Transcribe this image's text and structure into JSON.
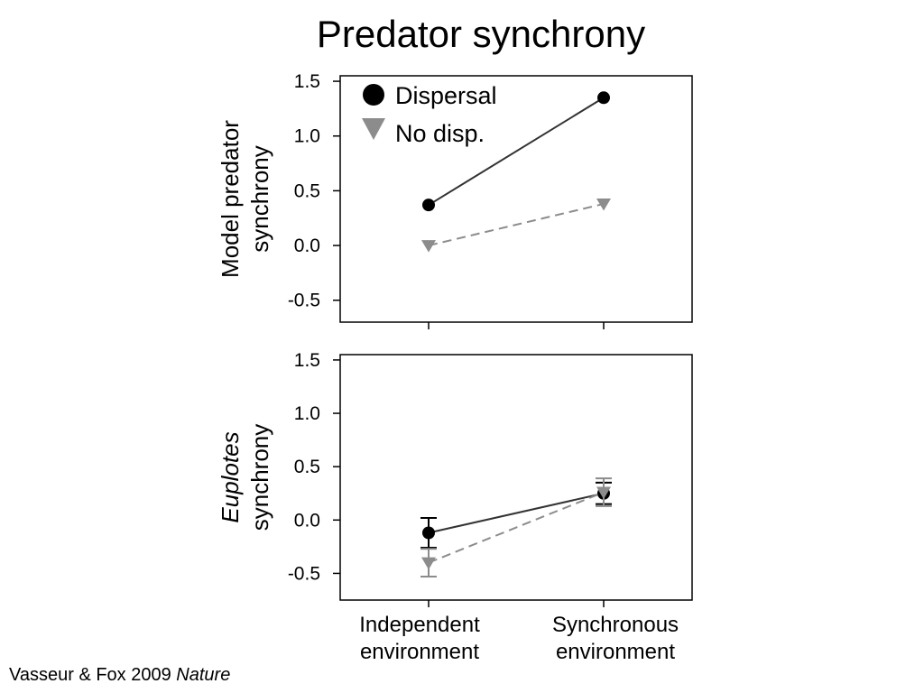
{
  "slide": {
    "title": "Predator synchrony",
    "citation_authors": "Vasseur & Fox 2009 ",
    "citation_journal": "Nature"
  },
  "colors": {
    "dispersal": "#000000",
    "no_dispersal": "#8c8c8c",
    "error_bar_dispersal": "#000000",
    "error_bar_no_dispersal": "#8c8c8c"
  },
  "chart_data": [
    {
      "type": "line",
      "panel": "top",
      "ylabel_lines": [
        "Model predator",
        "synchrony"
      ],
      "ylabel_italic_word": "",
      "categories": [
        "Independent environment",
        "Synchronous environment"
      ],
      "ylim": [
        -0.7,
        1.55
      ],
      "yticks": [
        1.5,
        1.0,
        0.5,
        0.0,
        -0.5
      ],
      "ytick_labels": [
        "1.5",
        "1.0",
        "0.5",
        "0.0",
        "-0.5"
      ],
      "grid": false,
      "legend_position": "top-left",
      "series": [
        {
          "name": "Dispersal",
          "marker": "circle",
          "line": "solid",
          "values": [
            0.37,
            1.35
          ]
        },
        {
          "name": "No disp.",
          "marker": "triangle-down",
          "line": "dashed",
          "values": [
            0.0,
            0.38
          ]
        }
      ]
    },
    {
      "type": "line",
      "panel": "bottom",
      "ylabel_lines": [
        "Euplotes",
        "synchrony"
      ],
      "ylabel_italic_word": "Euplotes",
      "categories": [
        "Independent environment",
        "Synchronous environment"
      ],
      "category_label_lines": [
        [
          "Independent",
          "environment"
        ],
        [
          "Synchronous",
          "environment"
        ]
      ],
      "ylim": [
        -0.75,
        1.55
      ],
      "yticks": [
        1.5,
        1.0,
        0.5,
        0.0,
        -0.5
      ],
      "ytick_labels": [
        "1.5",
        "1.0",
        "0.5",
        "0.0",
        "-0.5"
      ],
      "grid": false,
      "series": [
        {
          "name": "Dispersal",
          "marker": "circle",
          "line": "solid",
          "values": [
            -0.12,
            0.25
          ],
          "error": [
            0.14,
            0.1
          ]
        },
        {
          "name": "No disp.",
          "marker": "triangle-down",
          "line": "dashed",
          "values": [
            -0.4,
            0.26
          ],
          "error": [
            0.13,
            0.13
          ]
        }
      ]
    }
  ]
}
